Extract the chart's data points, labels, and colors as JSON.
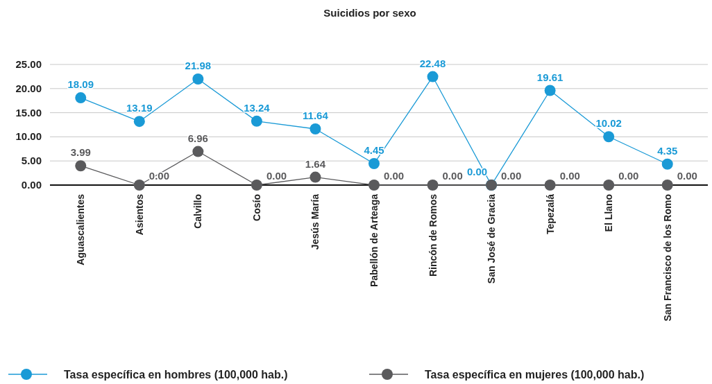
{
  "chart_data": {
    "type": "line",
    "title": "Suicidios por sexo",
    "categories": [
      "Aguascalientes",
      "Asientos",
      "Calvillo",
      "Cosío",
      "Jesús María",
      "Pabellón de Arteaga",
      "Rincón de Romos",
      "San José de Gracia",
      "Tepezalá",
      "El Llano",
      "San Francisco de los Romo"
    ],
    "series": [
      {
        "name": "Tasa específica en hombres (100,000 hab.)",
        "color": "#1a9ad6",
        "values": [
          18.09,
          13.19,
          21.98,
          13.24,
          11.64,
          4.45,
          22.48,
          0.0,
          19.61,
          10.02,
          4.35
        ],
        "value_labels": [
          "18.09",
          "13.19",
          "21.98",
          "13.24",
          "11.64",
          "4.45",
          "22.48",
          "0.00",
          "19.61",
          "10.02",
          "4.35"
        ]
      },
      {
        "name": "Tasa específica en mujeres (100,000 hab.)",
        "color": "#5a5a5c",
        "values": [
          3.99,
          0.0,
          6.96,
          0.0,
          1.64,
          0.0,
          0.0,
          0.0,
          0.0,
          0.0,
          0.0
        ],
        "value_labels": [
          "3.99",
          "0.00",
          "6.96",
          "0.00",
          "1.64",
          "0.00",
          "0.00",
          "0.00",
          "0.00",
          "0.00",
          "0.00"
        ]
      }
    ],
    "ylim": [
      0,
      25
    ],
    "yticks": [
      {
        "value": 0,
        "label": "0.00"
      },
      {
        "value": 5,
        "label": "5.00"
      },
      {
        "value": 10,
        "label": "10.00"
      },
      {
        "value": 15,
        "label": "15.00"
      },
      {
        "value": 20,
        "label": "20.00"
      },
      {
        "value": 25,
        "label": "25.00"
      }
    ],
    "grid": "y",
    "legend": "bottom",
    "marker": "circle",
    "line_style": "solid"
  }
}
